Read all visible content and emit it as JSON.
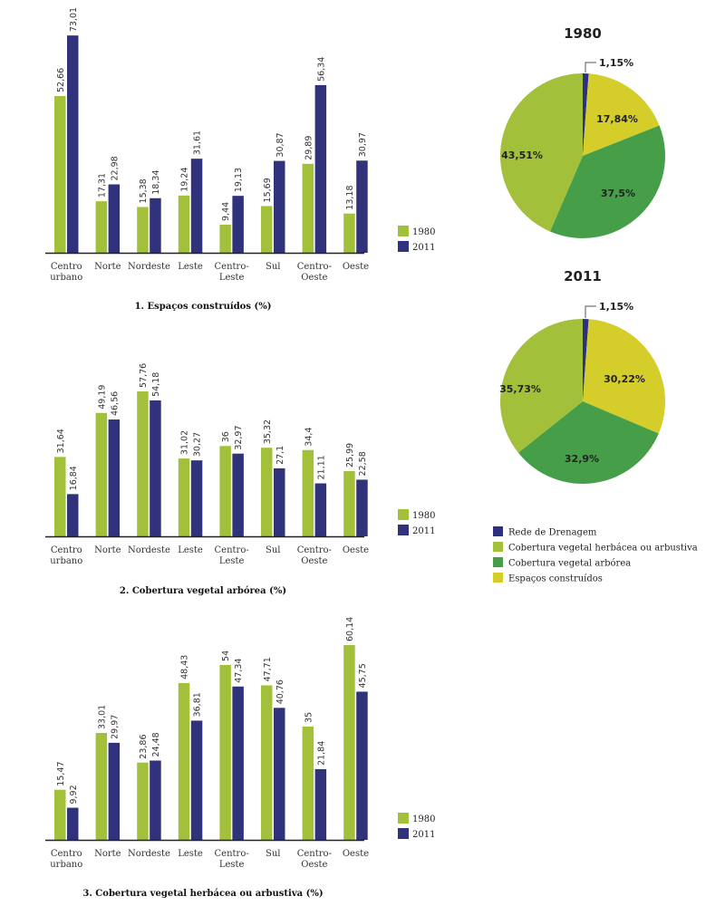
{
  "colors": {
    "y1980": "#a3c03a",
    "y2011": "#30337c",
    "rede": "#2e2f7f",
    "herbacea": "#a3c03a",
    "arborea": "#469f48",
    "construidos": "#d4cd2a",
    "axis": "#222222"
  },
  "chart_data": [
    {
      "type": "bar",
      "title": "1. Espaços construídos (%)",
      "categories": [
        "Centro urbano",
        "Norte",
        "Nordeste",
        "Leste",
        "Centro-Leste",
        "Sul",
        "Centro-Oeste",
        "Oeste"
      ],
      "category_lines": [
        [
          "Centro",
          "urbano"
        ],
        [
          "Norte"
        ],
        [
          "Nordeste"
        ],
        [
          "Leste"
        ],
        [
          "Centro-",
          "Leste"
        ],
        [
          "Sul"
        ],
        [
          "Centro-",
          "Oeste"
        ],
        [
          "Oeste"
        ]
      ],
      "series": [
        {
          "name": "1980",
          "values": [
            52.66,
            17.31,
            15.38,
            19.24,
            9.44,
            15.69,
            29.89,
            13.18
          ],
          "labels": [
            "52,66",
            "17,31",
            "15,38",
            "19,24",
            "9,44",
            "15,69",
            "29,89",
            "13,18"
          ]
        },
        {
          "name": "2011",
          "values": [
            73.01,
            22.98,
            18.34,
            31.61,
            19.13,
            30.87,
            56.34,
            30.97
          ],
          "labels": [
            "73,01",
            "22,98",
            "18,34",
            "31,61",
            "19,13",
            "30,87",
            "56,34",
            "30,97"
          ]
        }
      ],
      "legend": [
        "1980",
        "2011"
      ],
      "legend_position": "right",
      "xlabel": "",
      "ylabel": "",
      "grid": false
    },
    {
      "type": "bar",
      "title": "2. Cobertura vegetal arbórea (%)",
      "categories": [
        "Centro urbano",
        "Norte",
        "Nordeste",
        "Leste",
        "Centro-Leste",
        "Sul",
        "Centro-Oeste",
        "Oeste"
      ],
      "category_lines": [
        [
          "Centro",
          "urbano"
        ],
        [
          "Norte"
        ],
        [
          "Nordeste"
        ],
        [
          "Leste"
        ],
        [
          "Centro-",
          "Leste"
        ],
        [
          "Sul"
        ],
        [
          "Centro-",
          "Oeste"
        ],
        [
          "Oeste"
        ]
      ],
      "series": [
        {
          "name": "1980",
          "values": [
            31.64,
            49.19,
            57.76,
            31.02,
            36,
            35.32,
            34.4,
            25.99
          ],
          "labels": [
            "31,64",
            "49,19",
            "57,76",
            "31,02",
            "36",
            "35,32",
            "34,4",
            "25,99"
          ]
        },
        {
          "name": "2011",
          "values": [
            16.84,
            46.56,
            54.18,
            30.27,
            32.97,
            27.1,
            21.11,
            22.58
          ],
          "labels": [
            "16,84",
            "46,56",
            "54,18",
            "30,27",
            "32,97",
            "27,1",
            "21,11",
            "22,58"
          ]
        }
      ],
      "legend": [
        "1980",
        "2011"
      ],
      "legend_position": "right",
      "xlabel": "",
      "ylabel": "",
      "grid": false
    },
    {
      "type": "bar",
      "title": "3. Cobertura vegetal herbácea ou arbustiva (%)",
      "categories": [
        "Centro urbano",
        "Norte",
        "Nordeste",
        "Leste",
        "Centro-Leste",
        "Sul",
        "Centro-Oeste",
        "Oeste"
      ],
      "category_lines": [
        [
          "Centro",
          "urbano"
        ],
        [
          "Norte"
        ],
        [
          "Nordeste"
        ],
        [
          "Leste"
        ],
        [
          "Centro-",
          "Leste"
        ],
        [
          "Sul"
        ],
        [
          "Centro-",
          "Oeste"
        ],
        [
          "Oeste"
        ]
      ],
      "series": [
        {
          "name": "1980",
          "values": [
            15.47,
            33.01,
            23.86,
            48.43,
            54,
            47.71,
            35,
            60.14
          ],
          "labels": [
            "15,47",
            "33,01",
            "23,86",
            "48,43",
            "54",
            "47,71",
            "35",
            "60,14"
          ]
        },
        {
          "name": "2011",
          "values": [
            9.92,
            29.97,
            24.48,
            36.81,
            47.34,
            40.76,
            21.84,
            45.75
          ],
          "labels": [
            "9,92",
            "29,97",
            "24,48",
            "36,81",
            "47,34",
            "40,76",
            "21,84",
            "45,75"
          ]
        }
      ],
      "legend": [
        "1980",
        "2011"
      ],
      "legend_position": "right",
      "xlabel": "",
      "ylabel": "",
      "grid": false
    },
    {
      "type": "pie",
      "title": "1980",
      "slices": [
        {
          "name": "Rede de Drenagem",
          "value": 1.15,
          "label": "1,15%",
          "color_key": "rede"
        },
        {
          "name": "Espaços construídos",
          "value": 17.84,
          "label": "17,84%",
          "color_key": "construidos"
        },
        {
          "name": "Cobertura vegetal arbórea",
          "value": 37.5,
          "label": "37,5%",
          "color_key": "arborea"
        },
        {
          "name": "Cobertura vegetal herbácea ou arbustiva",
          "value": 43.51,
          "label": "43,51%",
          "color_key": "herbacea"
        }
      ]
    },
    {
      "type": "pie",
      "title": "2011",
      "slices": [
        {
          "name": "Rede de Drenagem",
          "value": 1.15,
          "label": "1,15%",
          "color_key": "rede"
        },
        {
          "name": "Espaços construídos",
          "value": 30.22,
          "label": "30,22%",
          "color_key": "construidos"
        },
        {
          "name": "Cobertura vegetal arbórea",
          "value": 32.9,
          "label": "32,9%",
          "color_key": "arborea"
        },
        {
          "name": "Cobertura vegetal herbácea ou arbustiva",
          "value": 35.73,
          "label": "35,73%",
          "color_key": "herbacea"
        }
      ]
    }
  ],
  "pie_legend": [
    {
      "label": "Rede de Drenagem",
      "color_key": "rede"
    },
    {
      "label": "Cobertura vegetal herbácea ou arbustiva",
      "color_key": "herbacea"
    },
    {
      "label": "Cobertura vegetal arbórea",
      "color_key": "arborea"
    },
    {
      "label": "Espaços construídos",
      "color_key": "construidos"
    }
  ]
}
